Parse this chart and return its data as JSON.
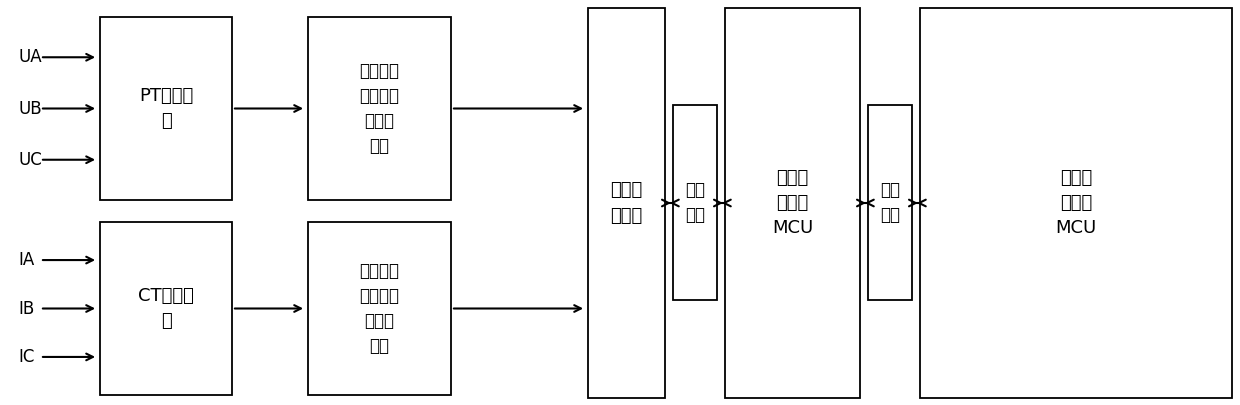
{
  "figsize": [
    12.4,
    4.05
  ],
  "dpi": 100,
  "bg_color": "#ffffff",
  "input_labels_top": [
    "UA",
    "UB",
    "UC"
  ],
  "input_labels_bottom": [
    "IA",
    "IB",
    "IC"
  ],
  "box_edge_color": "#000000",
  "box_face_color": "#ffffff",
  "arrow_color": "#000000",
  "text_color": "#000000",
  "label_pt": "PT电压采\n样",
  "label_ct": "CT电流采\n样",
  "label_sig": "信号调理\n（放大、\n低通滤\n波）",
  "label_chip": "专业计\n量芯片",
  "label_ser": "串行\n接口",
  "label_mcu1": "实时数\n据处理\nMCU",
  "label_mcu2": "应用数\n据处理\nMCU"
}
